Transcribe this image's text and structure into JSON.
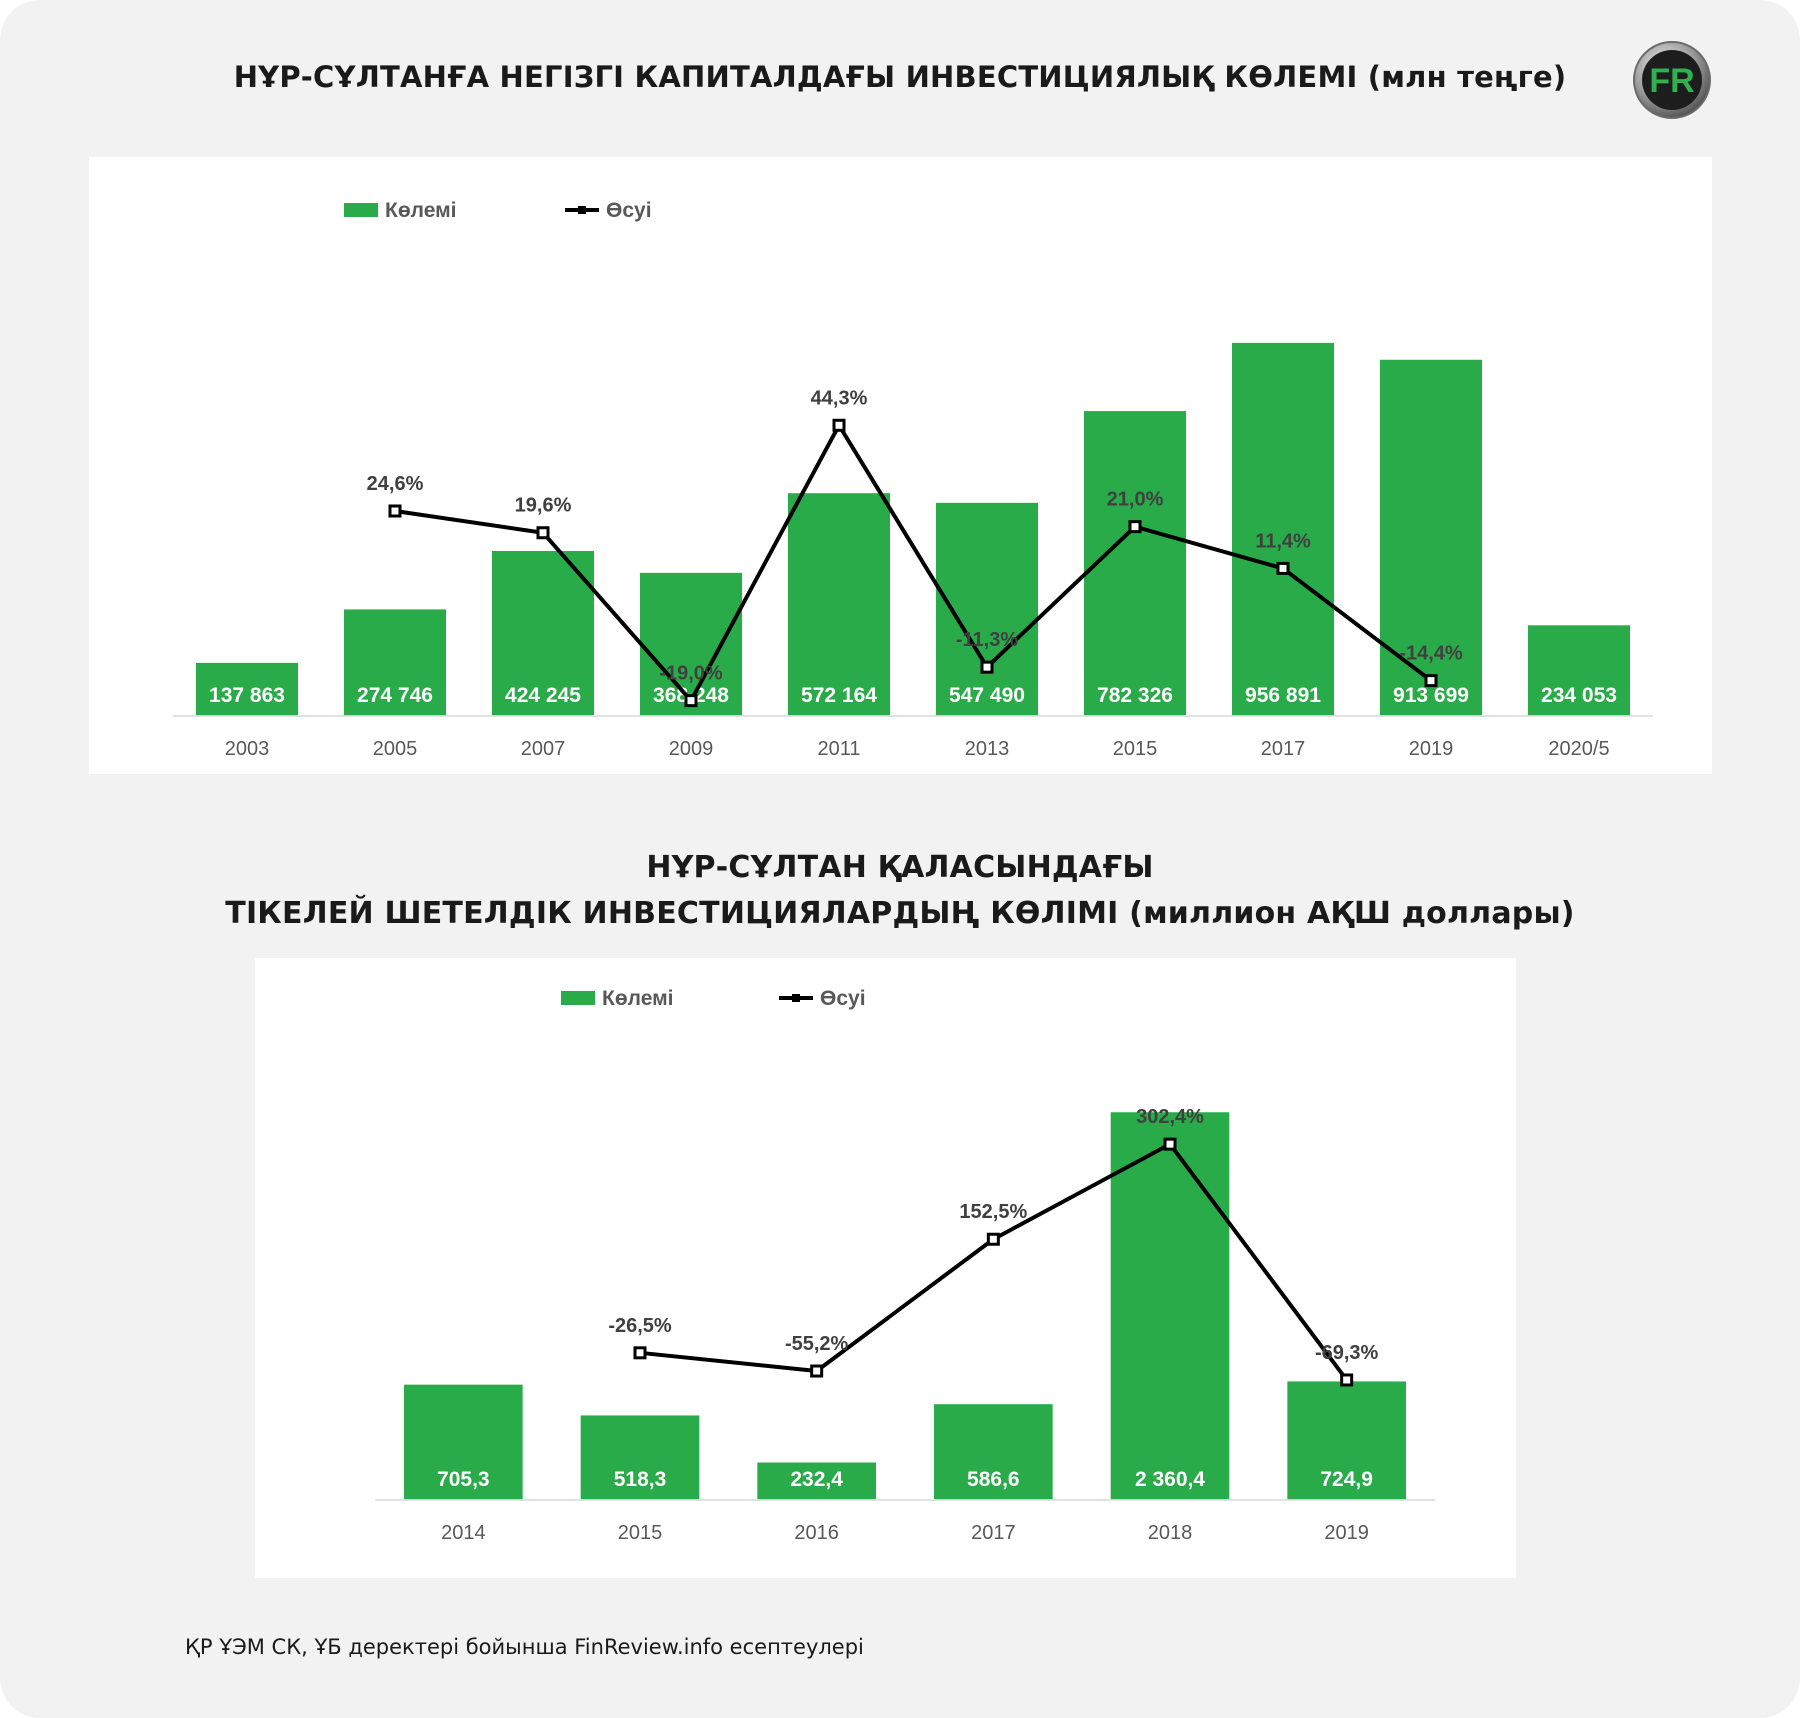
{
  "title_1": "НҰР-СҰЛТАНҒА НЕГІЗГІ КАПИТАЛДАҒЫ ИНВЕСТИЦИЯЛЫҚ КӨЛЕМІ (млн теңге)",
  "title_2_line1": "НҰР-СҰЛТАН ҚАЛАСЫНДАҒЫ",
  "title_2_line2": "ТІКЕЛЕЙ ШЕТЕЛДІК ИНВЕСТИЦИЯЛАРДЫҢ КӨЛІМІ (миллион АҚШ доллары)",
  "logo_text": "FR",
  "source": "ҚР ҰЭМ СК, ҰБ деректері бойынша FinReview.info есептеулері",
  "colors": {
    "bar": "#29ab4a",
    "line": "#000000",
    "background": "#f2f2f2",
    "panel": "#ffffff"
  },
  "chart_data": [
    {
      "type": "bar",
      "legend": {
        "bars": "Көлемі",
        "line": "Өсуі",
        "placement": "top-left"
      },
      "categories": [
        "2003",
        "2005",
        "2007",
        "2009",
        "2011",
        "2013",
        "2015",
        "2017",
        "2019",
        "2020/5"
      ],
      "series": [
        {
          "name": "Көлемі",
          "type": "bar",
          "axis": "left",
          "values": [
            137863,
            274746,
            424245,
            368248,
            572164,
            547490,
            782326,
            956891,
            913699,
            234053
          ],
          "labels": [
            "137 863",
            "274 746",
            "424 245",
            "368 248",
            "572 164",
            "547 490",
            "782 326",
            "956 891",
            "913 699",
            "234 053"
          ]
        },
        {
          "name": "Өсуі",
          "type": "line",
          "axis": "right",
          "values": [
            null,
            24.6,
            19.6,
            -19.0,
            44.3,
            -11.3,
            21.0,
            11.4,
            -14.4,
            null
          ],
          "labels": [
            "",
            "24,6%",
            "19,6%",
            "-19,0%",
            "44,3%",
            "-11,3%",
            "21,0%",
            "11,4%",
            "-14,4%",
            ""
          ]
        }
      ],
      "grid": false
    },
    {
      "type": "bar",
      "legend": {
        "bars": "Көлемі",
        "line": "Өсуі",
        "placement": "top-left"
      },
      "categories": [
        "2014",
        "2015",
        "2016",
        "2017",
        "2018",
        "2019"
      ],
      "series": [
        {
          "name": "Көлемі",
          "type": "bar",
          "axis": "left",
          "values": [
            705.3,
            518.3,
            232.4,
            586.6,
            2360.4,
            724.9
          ],
          "labels": [
            "705,3",
            "518,3",
            "232,4",
            "586,6",
            "2 360,4",
            "724,9"
          ]
        },
        {
          "name": "Өсуі",
          "type": "line",
          "axis": "right",
          "values": [
            null,
            -26.5,
            -55.2,
            152.5,
            302.4,
            -69.3
          ],
          "labels": [
            "",
            "-26,5%",
            "-55,2%",
            "152,5%",
            "302,4%",
            "-69,3%"
          ]
        }
      ],
      "grid": false
    }
  ]
}
